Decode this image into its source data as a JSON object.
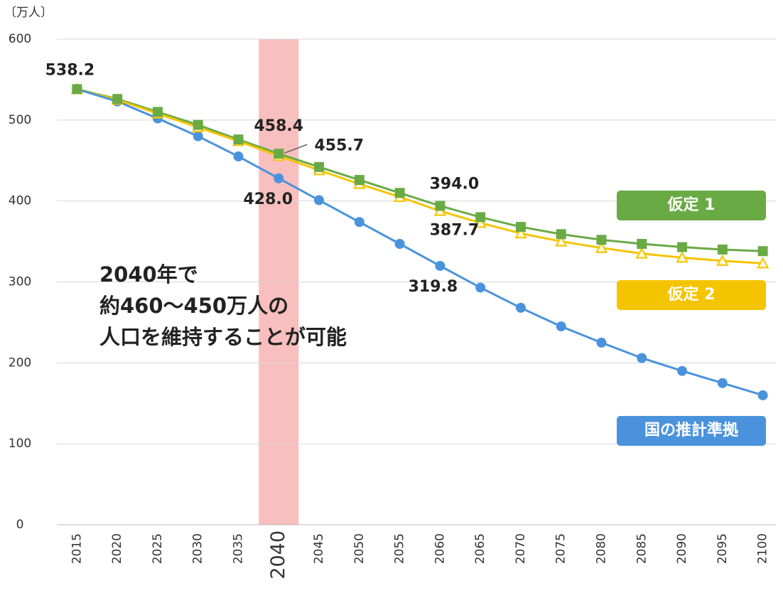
{
  "chart_data": {
    "type": "line",
    "y_unit": "〔万人〕",
    "categories": [
      "2015",
      "2020",
      "2025",
      "2030",
      "2035",
      "2040",
      "2045",
      "2050",
      "2055",
      "2060",
      "2065",
      "2070",
      "2075",
      "2080",
      "2085",
      "2090",
      "2095",
      "2100"
    ],
    "highlight": "2040",
    "ylim": [
      0,
      600
    ],
    "yticks": [
      0,
      100,
      200,
      300,
      400,
      500,
      600
    ],
    "grid": true,
    "series": [
      {
        "name": "仮定 1",
        "color": "#6aaa45",
        "marker": "square",
        "values": [
          538.2,
          526,
          510,
          494,
          476,
          458.4,
          442,
          426,
          410,
          394.0,
          380,
          368,
          359,
          352,
          347,
          343,
          340,
          338
        ],
        "value_labels": [
          "538.2",
          null,
          null,
          null,
          null,
          "458.4",
          null,
          null,
          null,
          "394.0",
          null,
          null,
          null,
          null,
          null,
          null,
          null,
          null
        ]
      },
      {
        "name": "仮定 2",
        "color": "#f5c400",
        "marker": "triangle",
        "values": [
          538.2,
          525,
          508,
          491,
          474,
          455.7,
          438,
          421,
          405,
          387.7,
          373,
          360,
          350,
          342,
          335,
          330,
          326,
          323
        ],
        "value_labels": [
          null,
          null,
          null,
          null,
          null,
          "455.7",
          null,
          null,
          null,
          "387.7",
          null,
          null,
          null,
          null,
          null,
          null,
          null,
          null
        ]
      },
      {
        "name": "国の推計準拠",
        "color": "#4a93dc",
        "marker": "circle",
        "values": [
          538.2,
          523,
          502,
          480,
          455,
          428.0,
          401,
          374,
          347,
          319.8,
          293,
          268,
          245,
          225,
          206,
          190,
          175,
          160
        ],
        "value_labels": [
          null,
          null,
          null,
          null,
          null,
          "428.0",
          null,
          null,
          null,
          "319.8",
          null,
          null,
          null,
          null,
          null,
          null,
          null,
          null
        ]
      }
    ],
    "annotation": [
      "2040年で",
      "約460～450万人の",
      "人口を維持することが可能"
    ]
  }
}
